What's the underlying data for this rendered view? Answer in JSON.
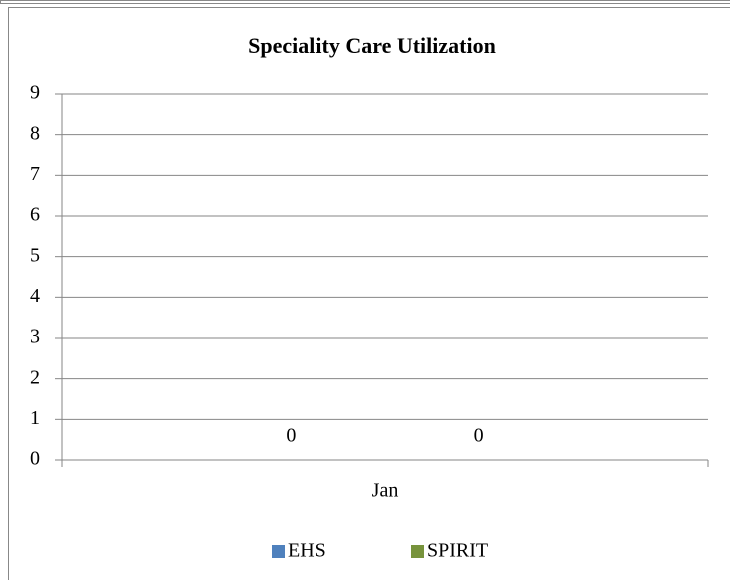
{
  "chart_data": {
    "type": "bar",
    "title": "Speciality Care Utilization",
    "categories": [
      "Jan"
    ],
    "series": [
      {
        "name": "EHS",
        "color": "#4f81bd",
        "values": [
          0
        ]
      },
      {
        "name": "SPIRIT",
        "color": "#77933c",
        "values": [
          0
        ]
      }
    ],
    "ylim": [
      0,
      9
    ],
    "yticks": [
      0,
      1,
      2,
      3,
      4,
      5,
      6,
      7,
      8,
      9
    ],
    "grid": true,
    "legend": "bottom"
  }
}
